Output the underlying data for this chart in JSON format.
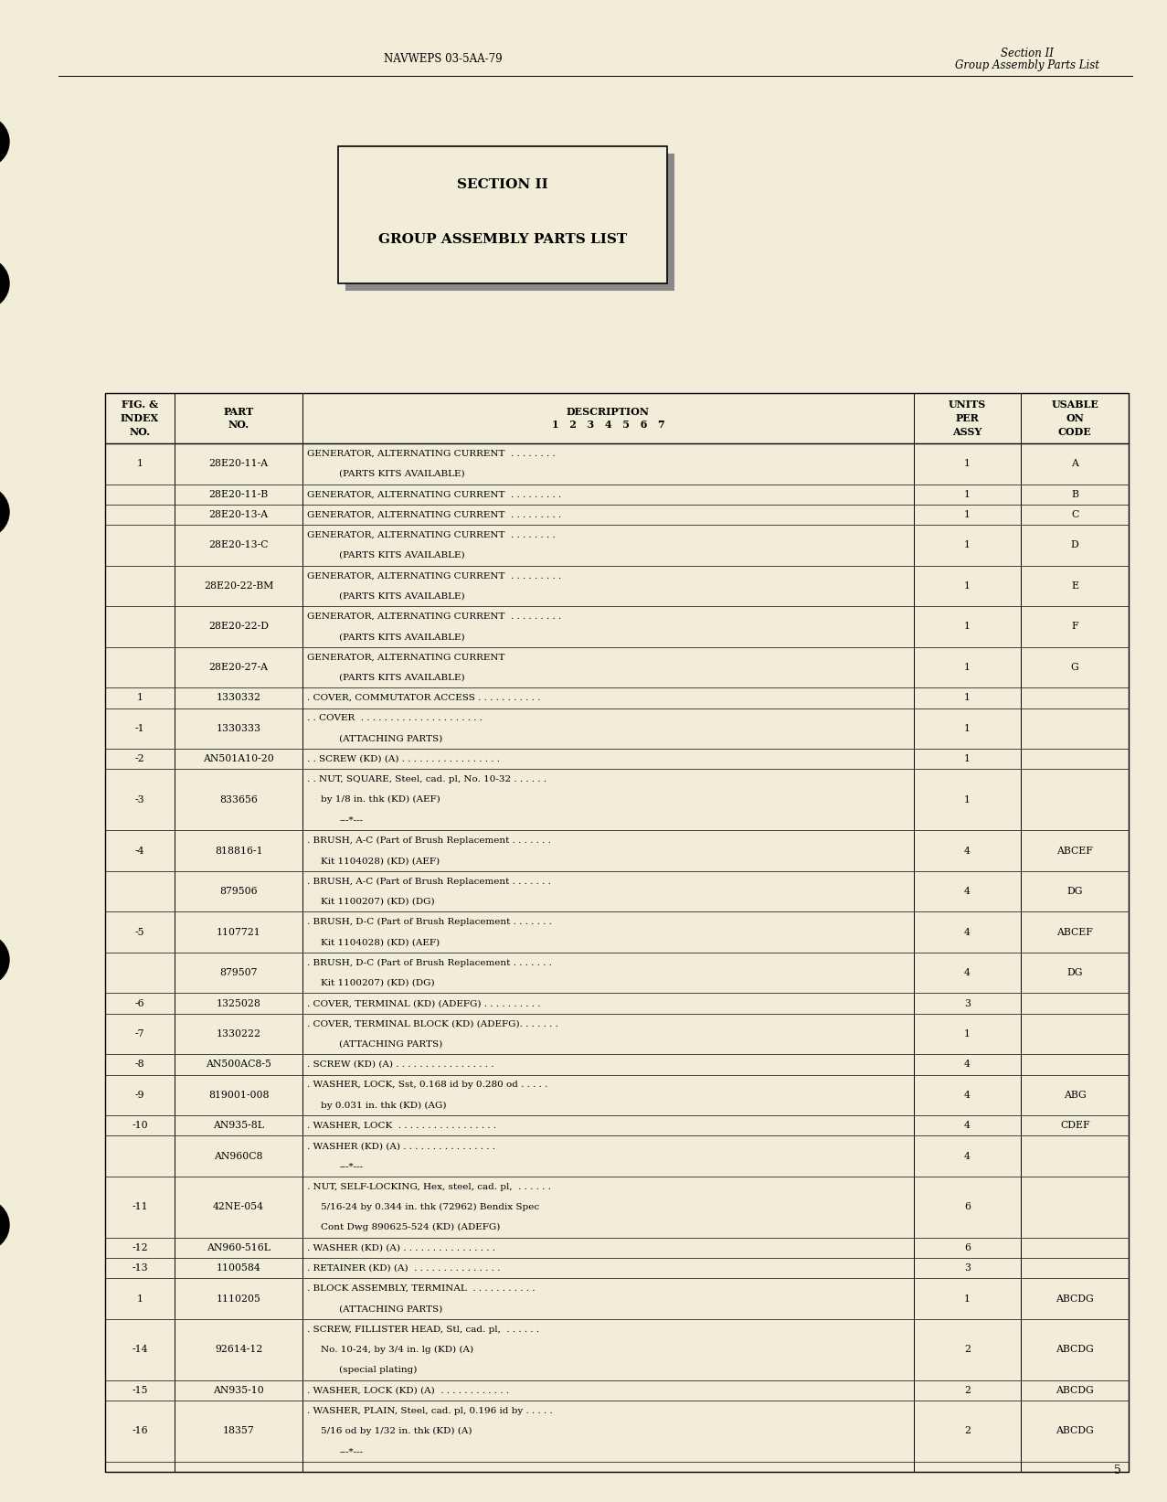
{
  "bg_color": "#f2edd8",
  "header_left": "NAVWEPS 03-5AA-79",
  "header_right_line1": "Section II",
  "header_right_line2": "Group Assembly Parts List",
  "section_box_line1": "SECTION II",
  "section_box_line2": "GROUP ASSEMBLY PARTS LIST",
  "footer_page": "5",
  "rows": [
    [
      "1",
      "28E20-11-A",
      "GENERATOR, ALTERNATING CURRENT  . . . . . . . .",
      "(PARTS KITS AVAILABLE)",
      "",
      "1",
      "A"
    ],
    [
      "",
      "28E20-11-B",
      "GENERATOR, ALTERNATING CURRENT  . . . . . . . . .",
      "",
      "",
      "1",
      "B"
    ],
    [
      "",
      "28E20-13-A",
      "GENERATOR, ALTERNATING CURRENT  . . . . . . . . .",
      "",
      "",
      "1",
      "C"
    ],
    [
      "",
      "28E20-13-C",
      "GENERATOR, ALTERNATING CURRENT  . . . . . . . .",
      "(PARTS KITS AVAILABLE)",
      "",
      "1",
      "D"
    ],
    [
      "",
      "28E20-22-BM",
      "GENERATOR, ALTERNATING CURRENT  . . . . . . . . .",
      "(PARTS KITS AVAILABLE)",
      "",
      "1",
      "E"
    ],
    [
      "",
      "28E20-22-D",
      "GENERATOR, ALTERNATING CURRENT  . . . . . . . . .",
      "(PARTS KITS AVAILABLE)",
      "",
      "1",
      "F"
    ],
    [
      "",
      "28E20-27-A",
      "GENERATOR, ALTERNATING CURRENT",
      "(PARTS KITS AVAILABLE)",
      "",
      "1",
      "G"
    ],
    [
      "1",
      "1330332",
      ". COVER, COMMUTATOR ACCESS . . . . . . . . . . .",
      "",
      "",
      "1",
      ""
    ],
    [
      "-1",
      "1330333",
      ". . COVER  . . . . . . . . . . . . . . . . . . . . .",
      "(ATTACHING PARTS)",
      "",
      "1",
      ""
    ],
    [
      "-2",
      "AN501A10-20",
      ". . SCREW (KD) (A) . . . . . . . . . . . . . . . . .",
      "",
      "",
      "1",
      ""
    ],
    [
      "-3",
      "833656",
      ". . NUT, SQUARE, Steel, cad. pl, No. 10-32 . . . . . .",
      "by 1/8 in. thk (KD) (AEF)",
      "---*---",
      "1",
      ""
    ],
    [
      "-4",
      "818816-1",
      ". BRUSH, A-C (Part of Brush Replacement . . . . . . .",
      "Kit 1104028) (KD) (AEF)",
      "",
      "4",
      "ABCEF"
    ],
    [
      "",
      "879506",
      ". BRUSH, A-C (Part of Brush Replacement . . . . . . .",
      "Kit 1100207) (KD) (DG)",
      "",
      "4",
      "DG"
    ],
    [
      "-5",
      "1107721",
      ". BRUSH, D-C (Part of Brush Replacement . . . . . . .",
      "Kit 1104028) (KD) (AEF)",
      "",
      "4",
      "ABCEF"
    ],
    [
      "",
      "879507",
      ". BRUSH, D-C (Part of Brush Replacement . . . . . . .",
      "Kit 1100207) (KD) (DG)",
      "",
      "4",
      "DG"
    ],
    [
      "-6",
      "1325028",
      ". COVER, TERMINAL (KD) (ADEFG) . . . . . . . . . .",
      "",
      "",
      "3",
      ""
    ],
    [
      "-7",
      "1330222",
      ". COVER, TERMINAL BLOCK (KD) (ADEFG). . . . . . .",
      "(ATTACHING PARTS)",
      "",
      "1",
      ""
    ],
    [
      "-8",
      "AN500AC8-5",
      ". SCREW (KD) (A) . . . . . . . . . . . . . . . . .",
      "",
      "",
      "4",
      ""
    ],
    [
      "-9",
      "819001-008",
      ". WASHER, LOCK, Sst, 0.168 id by 0.280 od . . . . .",
      "by 0.031 in. thk (KD) (AG)",
      "",
      "4",
      "ABG"
    ],
    [
      "-10",
      "AN935-8L",
      ". WASHER, LOCK  . . . . . . . . . . . . . . . . .",
      "",
      "",
      "4",
      "CDEF"
    ],
    [
      "",
      "AN960C8",
      ". WASHER (KD) (A) . . . . . . . . . . . . . . . .",
      "---*---",
      "",
      "4",
      ""
    ],
    [
      "-11",
      "42NE-054",
      ". NUT, SELF-LOCKING, Hex, steel, cad. pl,  . . . . . .",
      "5/16-24 by 0.344 in. thk (72962) Bendix Spec",
      "Cont Dwg 890625-524 (KD) (ADEFG)",
      "6",
      ""
    ],
    [
      "-12",
      "AN960-516L",
      ". WASHER (KD) (A) . . . . . . . . . . . . . . . .",
      "",
      "",
      "6",
      ""
    ],
    [
      "-13",
      "1100584",
      ". RETAINER (KD) (A)  . . . . . . . . . . . . . . .",
      "",
      "",
      "3",
      ""
    ],
    [
      "1",
      "1110205",
      ". BLOCK ASSEMBLY, TERMINAL  . . . . . . . . . . .",
      "(ATTACHING PARTS)",
      "",
      "1",
      "ABCDG"
    ],
    [
      "-14",
      "92614-12",
      ". SCREW, FILLISTER HEAD, Stl, cad. pl,  . . . . . .",
      "No. 10-24, by 3/4 in. lg (KD) (A)",
      "(special plating)",
      "2",
      "ABCDG"
    ],
    [
      "-15",
      "AN935-10",
      ". WASHER, LOCK (KD) (A)  . . . . . . . . . . . .",
      "",
      "",
      "2",
      "ABCDG"
    ],
    [
      "-16",
      "18357",
      ". WASHER, PLAIN, Steel, cad. pl, 0.196 id by . . . . .",
      "5/16 od by 1/32 in. thk (KD) (A)",
      "---*---",
      "2",
      "ABCDG"
    ]
  ]
}
